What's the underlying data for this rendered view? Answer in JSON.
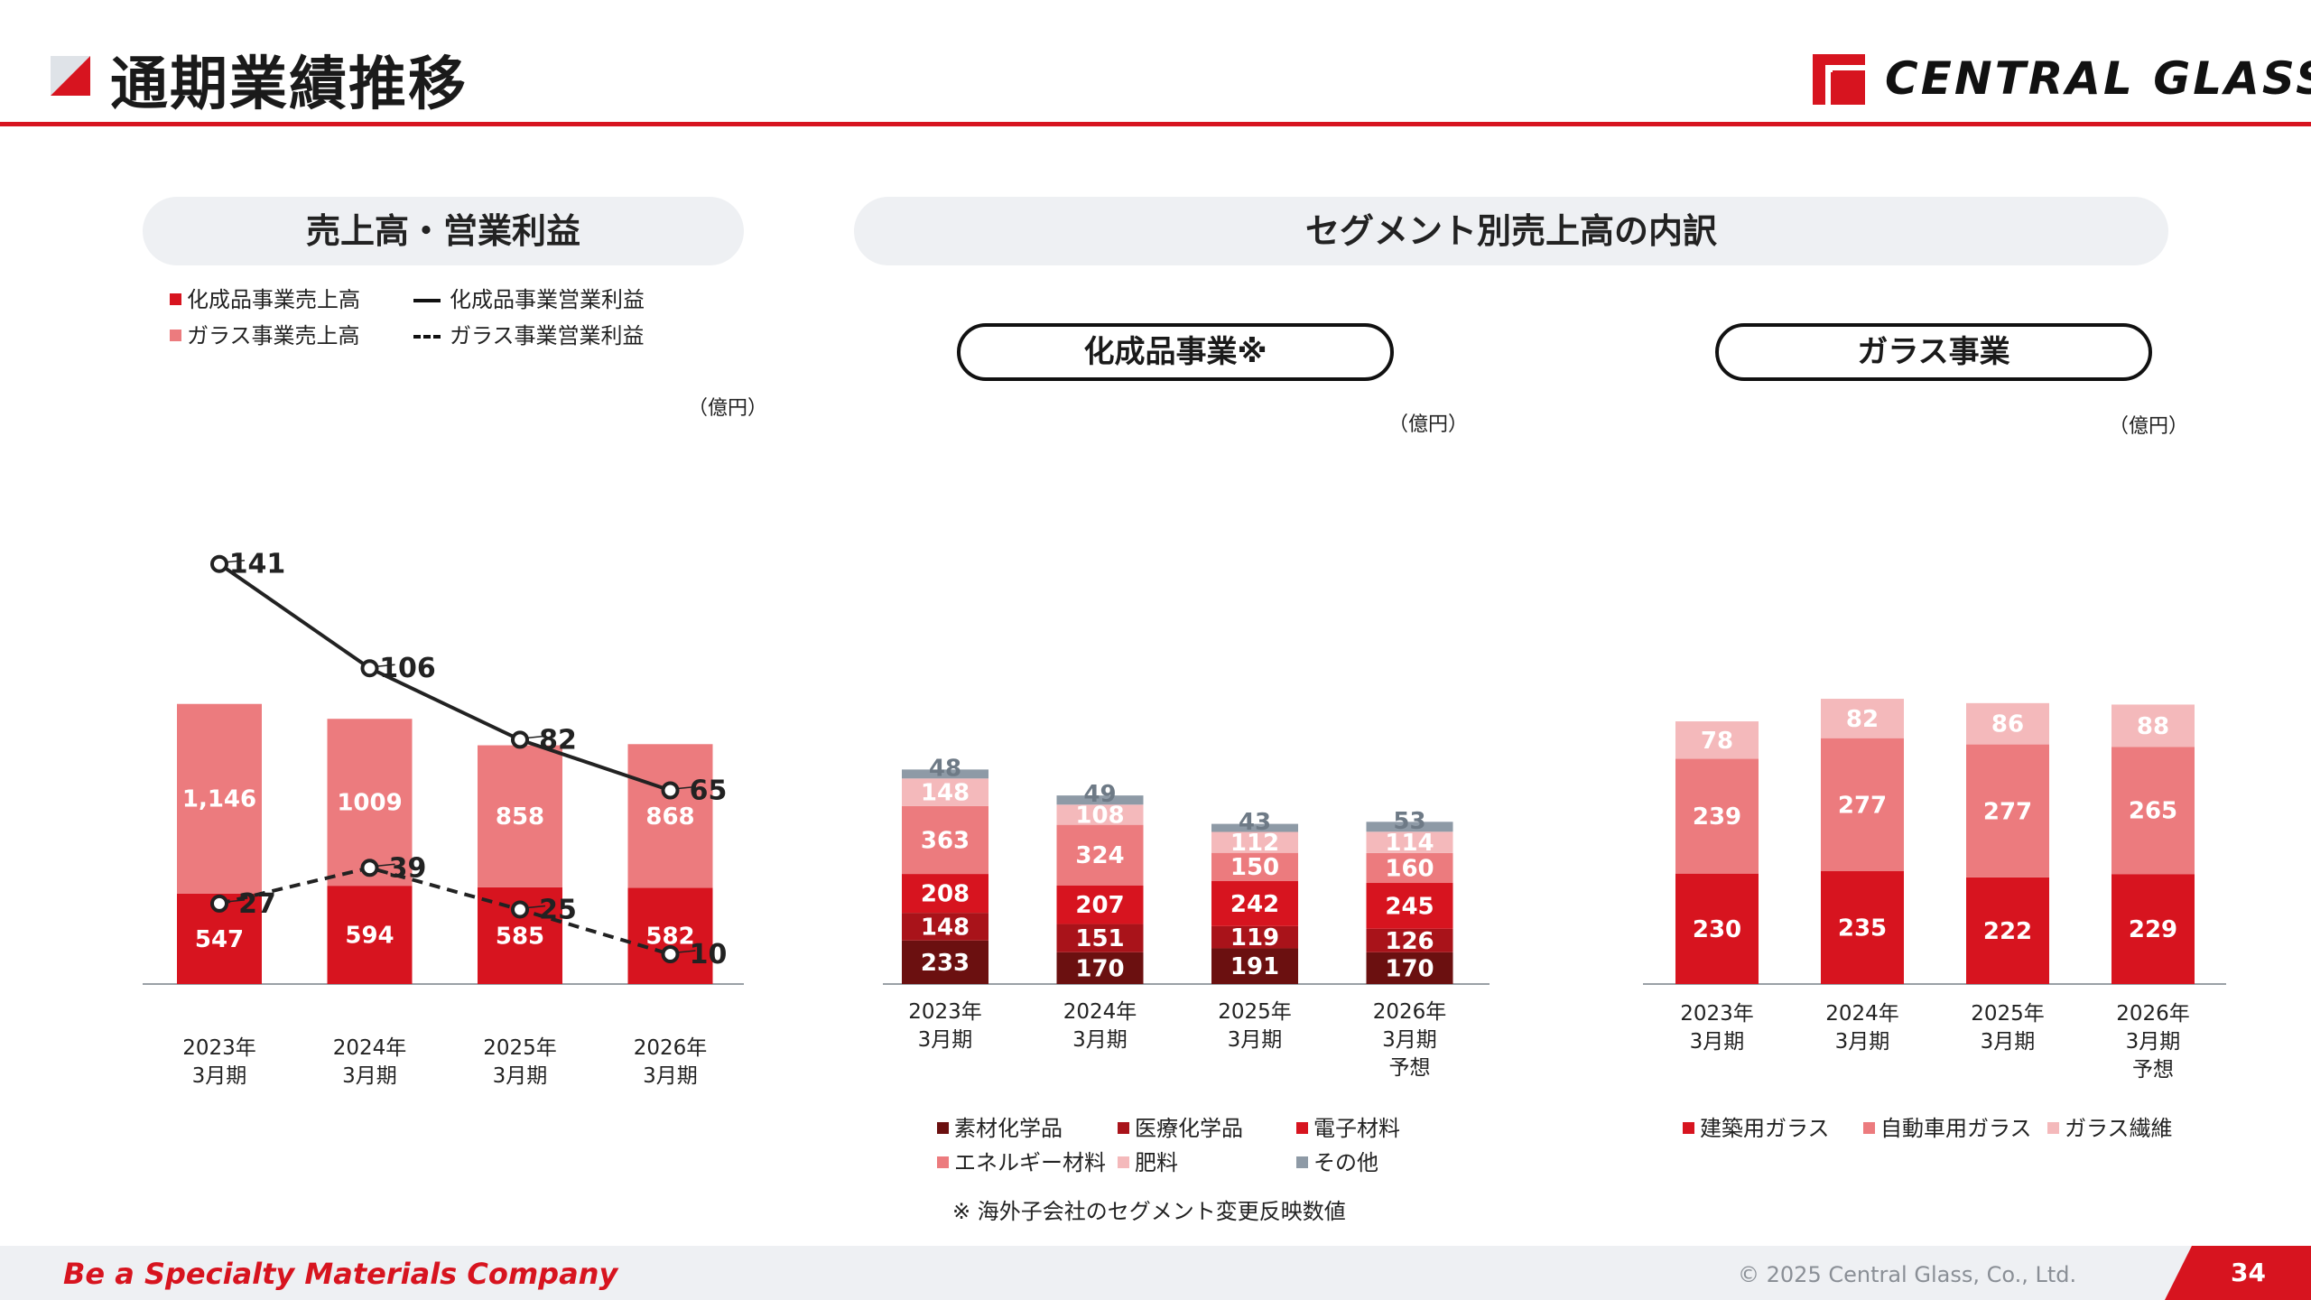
{
  "page": {
    "title": "通期業績推移",
    "logo_text": "CENTRAL  GLASS",
    "tagline": "Be a Specialty Materials Company",
    "copyright": "© 2025 Central Glass, Co., Ltd.",
    "page_number": "34",
    "note": "※ 海外子会社のセグメント変更反映数値"
  },
  "sections": {
    "left_title": "売上高・営業利益",
    "right_title": "セグメント別売上高の内訳",
    "chem_title": "化成品事業※",
    "glass_title": "ガラス事業"
  },
  "units": {
    "left": "（億円）",
    "chem": "（億円）",
    "glass": "（億円）"
  },
  "colors": {
    "accent": "#d7141f",
    "red": "#d7141f",
    "pink": "#ec7b7e",
    "light_pink": "#f4b9bb",
    "dark_red": "#6b1010",
    "crimson": "#a9131a",
    "gray": "#8e9aa6"
  },
  "chart_data": [
    {
      "type": "bar",
      "stacked": true,
      "categories": [
        [
          "2023年",
          "3月期"
        ],
        [
          "2024年",
          "3月期"
        ],
        [
          "2025年",
          "3月期"
        ],
        [
          "2026年",
          "3月期"
        ]
      ],
      "series": [
        {
          "name": "化成品事業売上高",
          "color": "#d7141f",
          "values": [
            547,
            594,
            585,
            582
          ],
          "labels": [
            "547",
            "594",
            "585",
            "582"
          ]
        },
        {
          "name": "ガラス事業売上高",
          "color": "#ec7b7e",
          "values": [
            1146,
            1009,
            858,
            868
          ],
          "labels": [
            "1,146",
            "1009",
            "858",
            "868"
          ]
        }
      ],
      "lines": [
        {
          "name": "化成品事業営業利益",
          "style": "solid",
          "values": [
            141,
            106,
            82,
            65
          ]
        },
        {
          "name": "ガラス事業営業利益",
          "style": "dashed",
          "values": [
            27,
            39,
            25,
            10
          ]
        }
      ],
      "legend": [
        {
          "label": "化成品事業売上高",
          "kind": "swatch",
          "color": "#d7141f"
        },
        {
          "label": "化成品事業営業利益",
          "kind": "line"
        },
        {
          "label": "ガラス事業売上高",
          "kind": "swatch",
          "color": "#ec7b7e"
        },
        {
          "label": "ガラス事業営業利益",
          "kind": "dash"
        }
      ],
      "legend_position": "top-left"
    },
    {
      "type": "bar",
      "stacked": true,
      "categories": [
        [
          "2023年",
          "3月期"
        ],
        [
          "2024年",
          "3月期"
        ],
        [
          "2025年",
          "3月期"
        ],
        [
          "2026年",
          "3月期",
          "予想"
        ]
      ],
      "series": [
        {
          "name": "素材化学品",
          "color": "#6b1010",
          "values": [
            233,
            170,
            191,
            170
          ]
        },
        {
          "name": "医療化学品",
          "color": "#a9131a",
          "values": [
            148,
            151,
            119,
            126
          ]
        },
        {
          "name": "電子材料",
          "color": "#d7141f",
          "values": [
            208,
            207,
            242,
            245
          ]
        },
        {
          "name": "エネルギー材料",
          "color": "#ec7b7e",
          "values": [
            363,
            324,
            150,
            160
          ]
        },
        {
          "name": "肥料",
          "color": "#f4b9bb",
          "values": [
            148,
            108,
            112,
            114
          ]
        },
        {
          "name": "その他",
          "color": "#8e9aa6",
          "values": [
            48,
            49,
            43,
            53
          ]
        }
      ],
      "legend_position": "bottom"
    },
    {
      "type": "bar",
      "stacked": true,
      "categories": [
        [
          "2023年",
          "3月期"
        ],
        [
          "2024年",
          "3月期"
        ],
        [
          "2025年",
          "3月期"
        ],
        [
          "2026年",
          "3月期",
          "予想"
        ]
      ],
      "series": [
        {
          "name": "建築用ガラス",
          "color": "#d7141f",
          "values": [
            230,
            235,
            222,
            229
          ]
        },
        {
          "name": "自動車用ガラス",
          "color": "#ec7b7e",
          "values": [
            239,
            277,
            277,
            265
          ]
        },
        {
          "name": "ガラス繊維",
          "color": "#f4b9bb",
          "values": [
            78,
            82,
            86,
            88
          ]
        }
      ],
      "legend_position": "bottom"
    }
  ]
}
